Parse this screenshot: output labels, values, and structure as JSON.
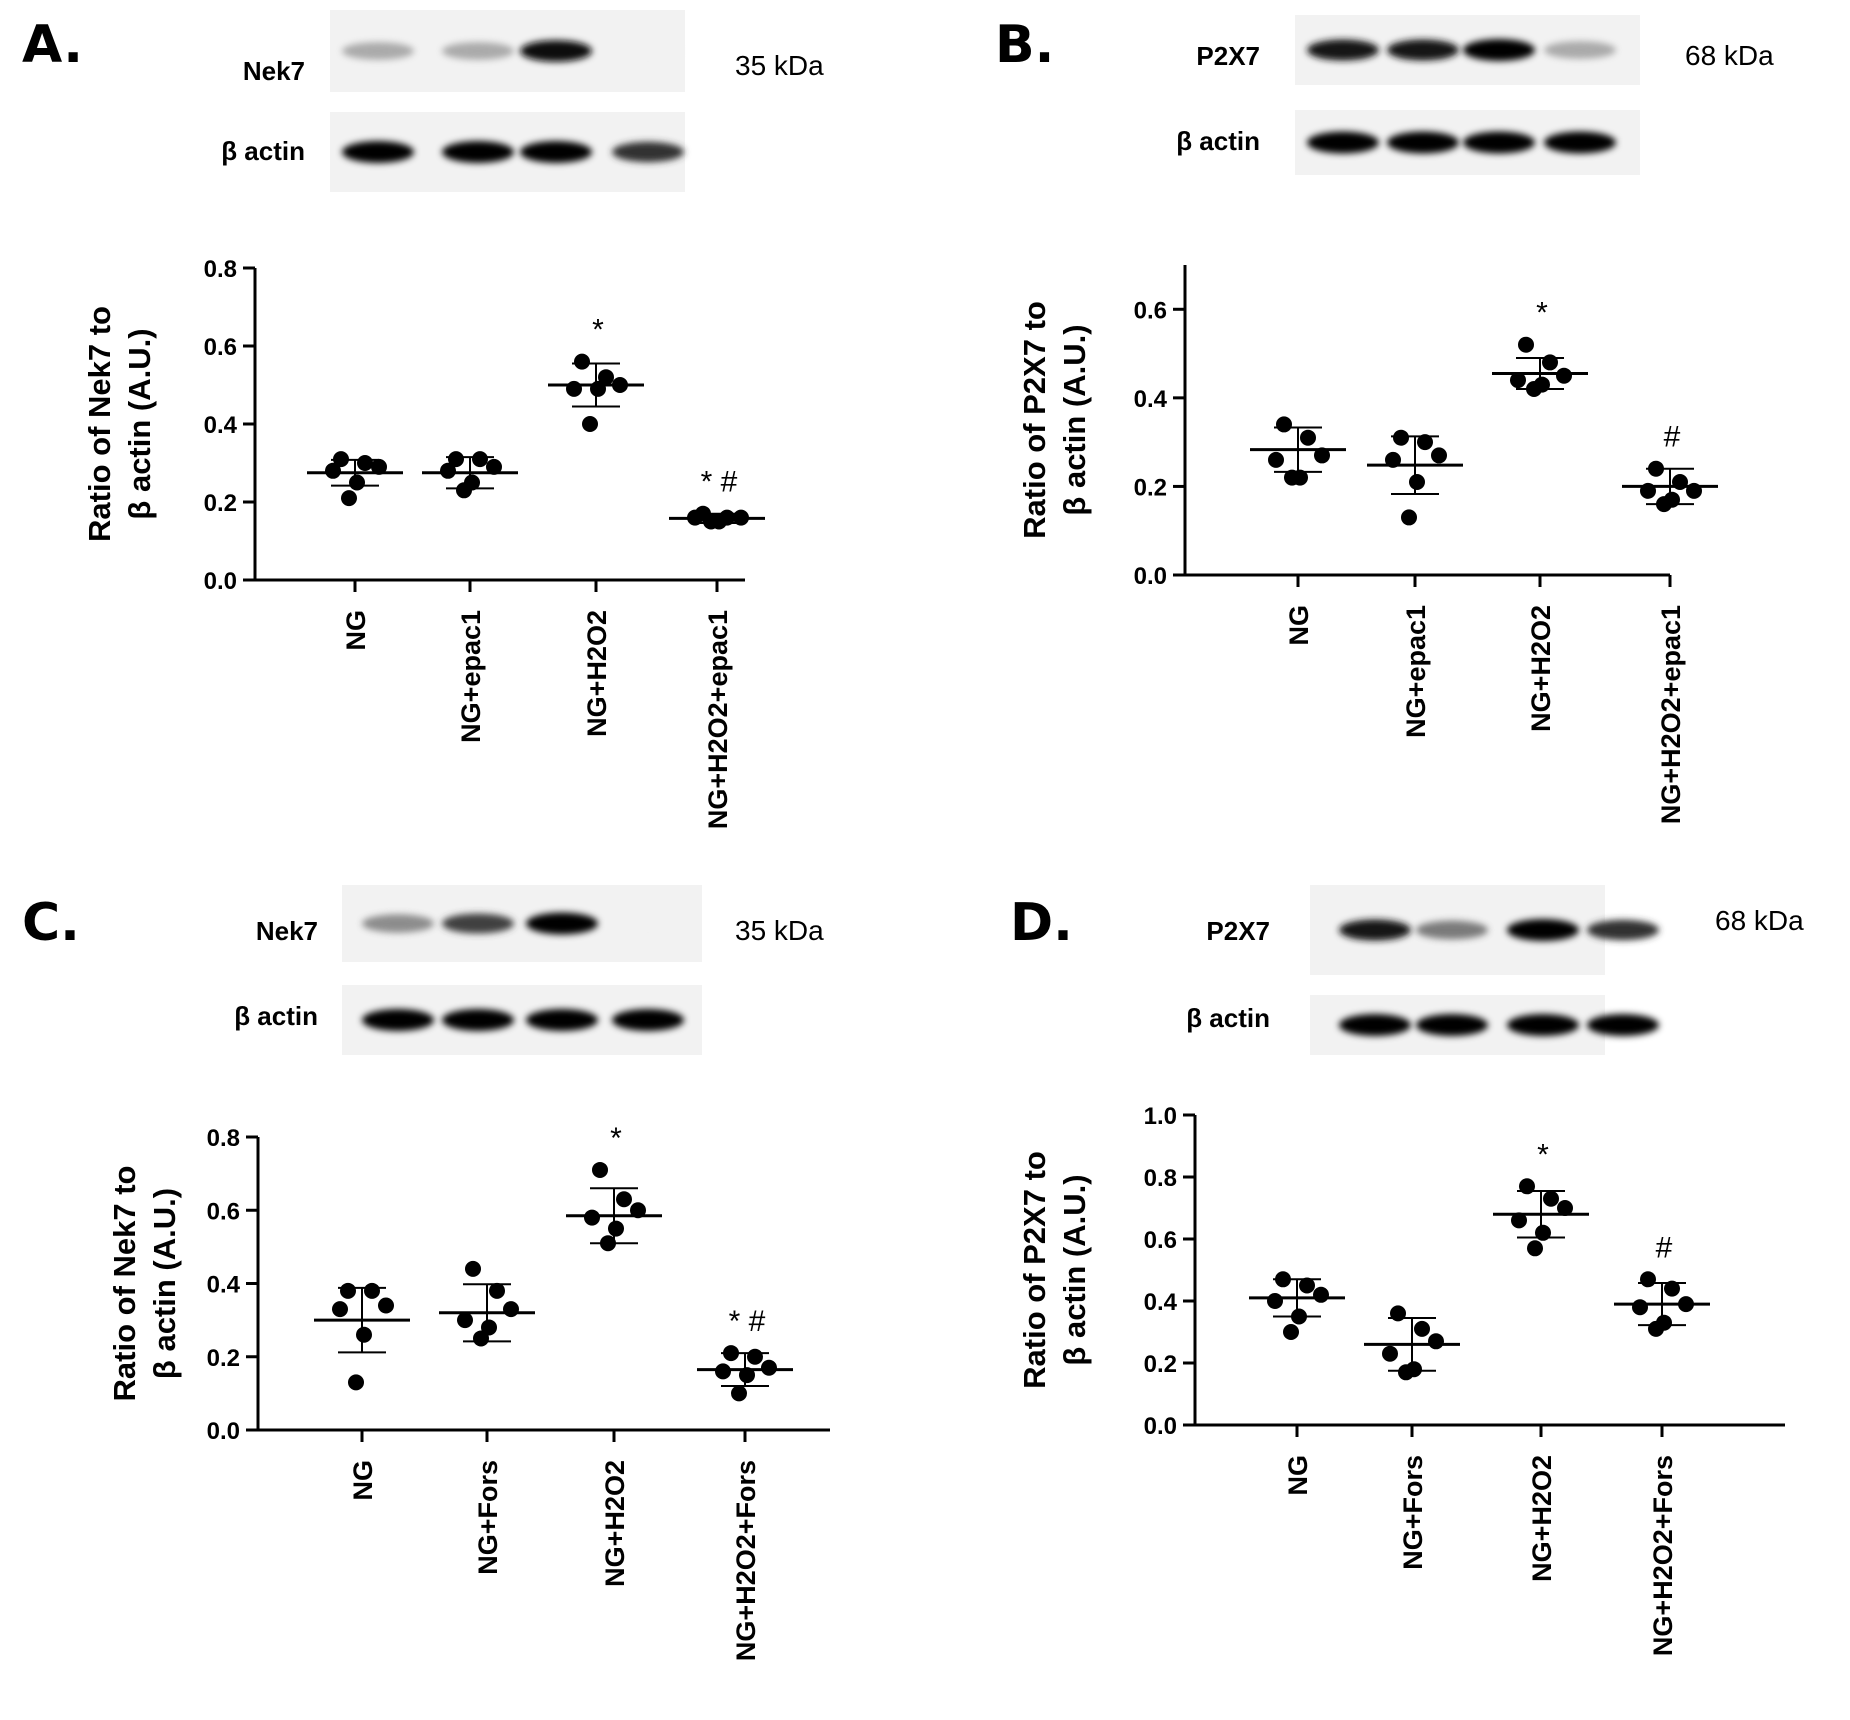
{
  "panels": [
    {
      "id": "A",
      "letter": "A.",
      "blot": {
        "labels": [
          "Nek7",
          "β actin"
        ],
        "size": "35 kDa",
        "bands": [
          [
            0.45,
            0.45,
            0.95,
            0.05
          ],
          [
            1,
            1,
            1,
            0.8
          ]
        ]
      },
      "chart_data": {
        "type": "scatter",
        "ylabel_lines": [
          "Ratio of Nek7 to",
          "β actin  (A.U.)"
        ],
        "categories": [
          "NG",
          "NG+epac1",
          "NG+H2O2",
          "NG+H2O2+epac1"
        ],
        "ylim": [
          0,
          0.8
        ],
        "yticks": [
          0.0,
          0.2,
          0.4,
          0.6,
          0.8
        ],
        "tick_format": 1,
        "points": [
          [
            0.31,
            0.3,
            0.29,
            0.28,
            0.25,
            0.21
          ],
          [
            0.31,
            0.31,
            0.29,
            0.28,
            0.25,
            0.23
          ],
          [
            0.56,
            0.52,
            0.5,
            0.49,
            0.49,
            0.4
          ],
          [
            0.17,
            0.16,
            0.16,
            0.16,
            0.15,
            0.15
          ]
        ],
        "mean": [
          0.275,
          0.275,
          0.5,
          0.158
        ],
        "sd": [
          0.033,
          0.04,
          0.055,
          0.012
        ],
        "annotations": [
          "",
          "",
          "*",
          "* #"
        ],
        "grid": false
      }
    },
    {
      "id": "B",
      "letter": "B.",
      "blot": {
        "labels": [
          "P2X7",
          "β actin"
        ],
        "size": "68 kDa",
        "bands": [
          [
            0.9,
            0.9,
            1,
            0.45
          ],
          [
            1,
            1,
            1,
            1
          ]
        ]
      },
      "chart_data": {
        "type": "scatter",
        "ylabel_lines": [
          "Ratio of P2X7 to",
          "β actin  (A.U.)"
        ],
        "categories": [
          "NG",
          "NG+epac1",
          "NG+H2O2",
          "NG+H2O2+epac1"
        ],
        "ylim": [
          0,
          0.7
        ],
        "yticks": [
          0.0,
          0.2,
          0.4,
          0.6
        ],
        "tick_format": 1,
        "points": [
          [
            0.34,
            0.31,
            0.27,
            0.26,
            0.22,
            0.22
          ],
          [
            0.31,
            0.3,
            0.27,
            0.26,
            0.21,
            0.13
          ],
          [
            0.52,
            0.48,
            0.45,
            0.44,
            0.43,
            0.42
          ],
          [
            0.24,
            0.21,
            0.19,
            0.19,
            0.17,
            0.16
          ]
        ],
        "mean": [
          0.283,
          0.248,
          0.455,
          0.2
        ],
        "sd": [
          0.05,
          0.065,
          0.035,
          0.04
        ],
        "annotations": [
          "",
          "",
          "*",
          "#"
        ],
        "grid": false
      }
    },
    {
      "id": "C",
      "letter": "C.",
      "blot": {
        "labels": [
          "Nek7",
          "β actin"
        ],
        "size": "35 kDa",
        "bands": [
          [
            0.55,
            0.75,
            1,
            0.05
          ],
          [
            1,
            1,
            1,
            1
          ]
        ]
      },
      "chart_data": {
        "type": "scatter",
        "ylabel_lines": [
          "Ratio of  Nek7 to",
          "β actin  (A.U.)"
        ],
        "categories": [
          "NG",
          "NG+Fors",
          "NG+H2O2",
          "NG+H2O2+Fors"
        ],
        "ylim": [
          0,
          0.8
        ],
        "yticks": [
          0.0,
          0.2,
          0.4,
          0.6,
          0.8
        ],
        "tick_format": 1,
        "points": [
          [
            0.38,
            0.38,
            0.34,
            0.33,
            0.26,
            0.13
          ],
          [
            0.44,
            0.38,
            0.33,
            0.3,
            0.28,
            0.25
          ],
          [
            0.71,
            0.63,
            0.6,
            0.58,
            0.55,
            0.51
          ],
          [
            0.21,
            0.2,
            0.17,
            0.16,
            0.15,
            0.1
          ]
        ],
        "mean": [
          0.3,
          0.32,
          0.585,
          0.165
        ],
        "sd": [
          0.088,
          0.078,
          0.075,
          0.045
        ],
        "annotations": [
          "",
          "",
          "*",
          "* #"
        ],
        "grid": false
      }
    },
    {
      "id": "D",
      "letter": "D.",
      "blot": {
        "labels": [
          "P2X7",
          "β actin"
        ],
        "size": "68 kDa",
        "bands": [
          [
            0.9,
            0.6,
            1,
            0.8
          ],
          [
            1,
            1,
            1,
            1
          ]
        ]
      },
      "chart_data": {
        "type": "scatter",
        "ylabel_lines": [
          "Ratio of P2X7 to",
          "β actin  (A.U.)"
        ],
        "categories": [
          "NG",
          "NG+Fors",
          "NG+H2O2",
          "NG+H2O2+Fors"
        ],
        "ylim": [
          0,
          1.0
        ],
        "yticks": [
          0.0,
          0.2,
          0.4,
          0.6,
          0.8,
          1.0
        ],
        "tick_format": 1,
        "points": [
          [
            0.47,
            0.45,
            0.42,
            0.4,
            0.35,
            0.3
          ],
          [
            0.36,
            0.31,
            0.27,
            0.23,
            0.18,
            0.17
          ],
          [
            0.77,
            0.73,
            0.7,
            0.66,
            0.62,
            0.57
          ],
          [
            0.47,
            0.44,
            0.39,
            0.38,
            0.33,
            0.31
          ]
        ],
        "mean": [
          0.41,
          0.26,
          0.68,
          0.39
        ],
        "sd": [
          0.06,
          0.085,
          0.075,
          0.068
        ],
        "annotations": [
          "",
          "",
          "*",
          "#"
        ],
        "grid": false
      }
    }
  ]
}
